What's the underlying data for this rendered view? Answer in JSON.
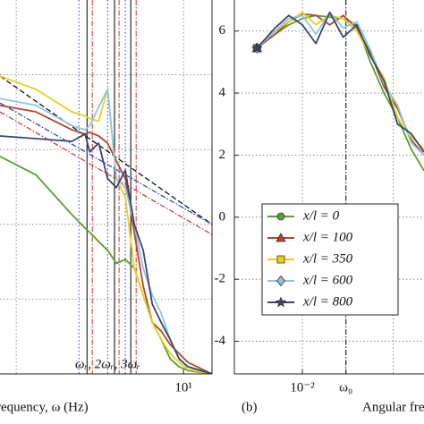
{
  "chart_data": [
    {
      "type": "line",
      "xscale": "log",
      "yscale": "log",
      "xlabel": "requency, ω (Hz)",
      "annotation": "ωᵣ, 2ωᵣ, 3ωᵣ",
      "xlim": [
        0.8,
        14.8
      ],
      "ylim": [
        1e-05,
        1
      ],
      "xticks": [
        {
          "value": 10,
          "label": "10¹"
        }
      ],
      "xgrid": [
        1,
        10
      ],
      "ygrid": [
        0.0001,
        0.001,
        0.01,
        0.1
      ],
      "grid": true,
      "vlines": [
        {
          "x": 2.37,
          "color": "#2a3fbf",
          "style": "dotted"
        },
        {
          "x": 2.65,
          "color": "#000000",
          "style": "solid"
        },
        {
          "x": 2.85,
          "color": "#d03030",
          "style": "dashdot"
        },
        {
          "x": 3.52,
          "color": "#2a3fbf",
          "style": "dotted"
        },
        {
          "x": 3.87,
          "color": "#000000",
          "style": "solid"
        },
        {
          "x": 4.12,
          "color": "#d03030",
          "style": "dashdot"
        },
        {
          "x": 4.49,
          "color": "#2a3fbf",
          "style": "dotted"
        },
        {
          "x": 4.84,
          "color": "#000000",
          "style": "solid"
        },
        {
          "x": 5.21,
          "color": "#d03030",
          "style": "dashdot"
        }
      ],
      "series": [
        {
          "color": "#000000",
          "style": "dashed",
          "x": [
            0.8,
            14.8
          ],
          "values": [
            0.096,
            0.001
          ]
        },
        {
          "color": "#2a3fbf",
          "style": "dashdot",
          "x": [
            0.8,
            14.8
          ],
          "values": [
            0.042,
            0.001
          ]
        },
        {
          "color": "#d03030",
          "style": "dashdot",
          "x": [
            0.8,
            14.8
          ],
          "values": [
            0.032,
            0.00073
          ]
        },
        {
          "color": "#5aa02c",
          "style": "solid",
          "x": [
            0.8,
            1.31,
            2.15,
            2.58,
            2.75,
            3.11,
            3.52,
            3.97,
            4.49,
            5.08,
            5.74,
            6.5,
            7.35,
            8.31,
            9.4,
            10.6,
            14.8
          ],
          "values": [
            0.0081,
            0.0046,
            0.00135,
            0.00089,
            0.00078,
            0.00059,
            0.00045,
            0.0003,
            0.00034,
            0.00026,
            0.000113,
            4.9e-05,
            2.9e-05,
            1.6e-05,
            1.25e-05,
            1.11e-05,
            1e-05
          ]
        },
        {
          "color": "#b5452a",
          "style": "solid",
          "x": [
            0.8,
            1.31,
            2.15,
            2.58,
            2.75,
            3.11,
            3.52,
            3.97,
            4.49,
            5.08,
            5.74,
            6.5,
            7.35,
            8.31,
            9.4,
            10.6,
            14.8
          ],
          "values": [
            0.039,
            0.032,
            0.0184,
            0.0161,
            0.017,
            0.0152,
            0.0122,
            0.007,
            0.0041,
            0.00078,
            0.000149,
            4.9e-05,
            3.75e-05,
            2.48e-05,
            1.88e-05,
            1.43e-05,
            1e-05
          ]
        },
        {
          "color": "#e8d21a",
          "style": "solid",
          "x": [
            0.8,
            1.31,
            2.15,
            2.58,
            2.75,
            3.11,
            3.52,
            3.97,
            4.49,
            5.08,
            5.74,
            6.5,
            7.35,
            8.31,
            9.4,
            10.6,
            14.8
          ],
          "values": [
            0.096,
            0.064,
            0.032,
            0.028,
            0.026,
            0.024,
            0.064,
            0.0041,
            0.0023,
            0.00026,
            0.000113,
            4.9e-05,
            2.9e-05,
            1.88e-05,
            1.43e-05,
            1.15e-05,
            1e-05
          ]
        },
        {
          "color": "#8ec6e0",
          "style": "solid",
          "x": [
            0.8,
            1.31,
            2.15,
            2.58,
            2.75,
            3.11,
            3.52,
            3.97,
            4.49,
            5.08,
            5.74,
            6.5,
            7.35,
            8.31,
            9.4,
            10.6,
            14.8
          ],
          "values": [
            0.048,
            0.039,
            0.021,
            0.0184,
            0.021,
            0.037,
            0.064,
            0.0041,
            0.0031,
            0.001,
            0.00026,
            0.000113,
            6.5e-05,
            2.9e-05,
            1.6e-05,
            1.25e-05,
            1e-05
          ]
        },
        {
          "color": "#3a4670",
          "style": "solid",
          "x": [
            0.8,
            1.31,
            2.15,
            2.58,
            2.75,
            3.11,
            3.52,
            3.97,
            4.49,
            5.08,
            5.74,
            6.5,
            7.35,
            8.31,
            9.4,
            10.6,
            14.8
          ],
          "values": [
            0.0152,
            0.014,
            0.0129,
            0.0161,
            0.0093,
            0.0122,
            0.0041,
            0.0031,
            0.0053,
            0.001,
            0.00045,
            8.6e-05,
            4.9e-05,
            2.9e-05,
            1.6e-05,
            1.25e-05,
            1e-05
          ]
        }
      ]
    },
    {
      "type": "line",
      "xscale": "log",
      "yscale": "linear",
      "panel": "(b)",
      "xlabel": "Angular fre",
      "xlim": [
        0.00178,
        0.219
      ],
      "ylim": [
        -5.05,
        7
      ],
      "xticks": [
        {
          "value": 0.01,
          "label": "10⁻²"
        },
        {
          "value": 0.0302,
          "label": "ω₀"
        }
      ],
      "yticks": [
        -4,
        -2,
        0,
        2,
        4,
        6
      ],
      "xgrid": [
        0.01,
        0.1
      ],
      "ygrid": [
        -4,
        -2,
        0,
        2,
        4,
        6
      ],
      "grid": true,
      "vlines": [
        {
          "x": 0.0302,
          "color": "#000000",
          "style": "dashdot"
        }
      ],
      "legend": "bottom-left",
      "series": [
        {
          "name": "x/l = 0",
          "marker": "circle",
          "color": "#5aa02c",
          "style": "solid",
          "x": [
            0.00316,
            0.005,
            0.00708,
            0.01,
            0.0141,
            0.02,
            0.0282,
            0.0398,
            0.0562,
            0.0794,
            0.112,
            0.158,
            0.219
          ],
          "values": [
            5.45,
            5.9,
            6.2,
            6.4,
            6.5,
            6.45,
            6.4,
            6.2,
            5.0,
            4.0,
            3.2,
            2.2,
            1.5
          ]
        },
        {
          "name": "x/l = 100",
          "marker": "triangle",
          "color": "#b5452a",
          "style": "solid",
          "x": [
            0.00316,
            0.005,
            0.00708,
            0.01,
            0.0141,
            0.02,
            0.0282,
            0.0398,
            0.0562,
            0.0794,
            0.112,
            0.158,
            0.219
          ],
          "values": [
            5.45,
            5.9,
            6.3,
            6.55,
            6.5,
            6.2,
            6.5,
            6.1,
            5.3,
            4.2,
            3.5,
            2.5,
            2.0
          ]
        },
        {
          "name": "x/l = 350",
          "marker": "square",
          "color": "#e8d21a",
          "style": "solid",
          "x": [
            0.00316,
            0.005,
            0.00708,
            0.01,
            0.0141,
            0.02,
            0.0282,
            0.0398,
            0.0562,
            0.0794,
            0.112,
            0.158,
            0.219
          ],
          "values": [
            5.45,
            6.0,
            6.3,
            6.6,
            6.2,
            6.5,
            6.4,
            6.0,
            5.2,
            4.5,
            3.2,
            2.6,
            2.2
          ]
        },
        {
          "name": "x/l = 600",
          "marker": "diamond",
          "color": "#8ec6e0",
          "style": "solid",
          "x": [
            0.00316,
            0.005,
            0.00708,
            0.01,
            0.0141,
            0.02,
            0.0282,
            0.0398,
            0.0562,
            0.0794,
            0.112,
            0.158,
            0.219
          ],
          "values": [
            5.45,
            6.0,
            6.4,
            6.5,
            5.9,
            6.6,
            6.1,
            6.3,
            5.4,
            4.3,
            3.6,
            2.4,
            2.0
          ]
        },
        {
          "name": "x/l = 800",
          "marker": "star",
          "color": "#3a4670",
          "style": "solid",
          "x": [
            0.00316,
            0.005,
            0.00708,
            0.01,
            0.0141,
            0.02,
            0.0282,
            0.0398,
            0.0562,
            0.0794,
            0.112,
            0.158,
            0.219
          ],
          "values": [
            5.45,
            6.1,
            6.5,
            6.2,
            5.6,
            6.6,
            5.8,
            6.2,
            5.2,
            4.4,
            3.0,
            2.7,
            2.1
          ]
        }
      ]
    }
  ]
}
